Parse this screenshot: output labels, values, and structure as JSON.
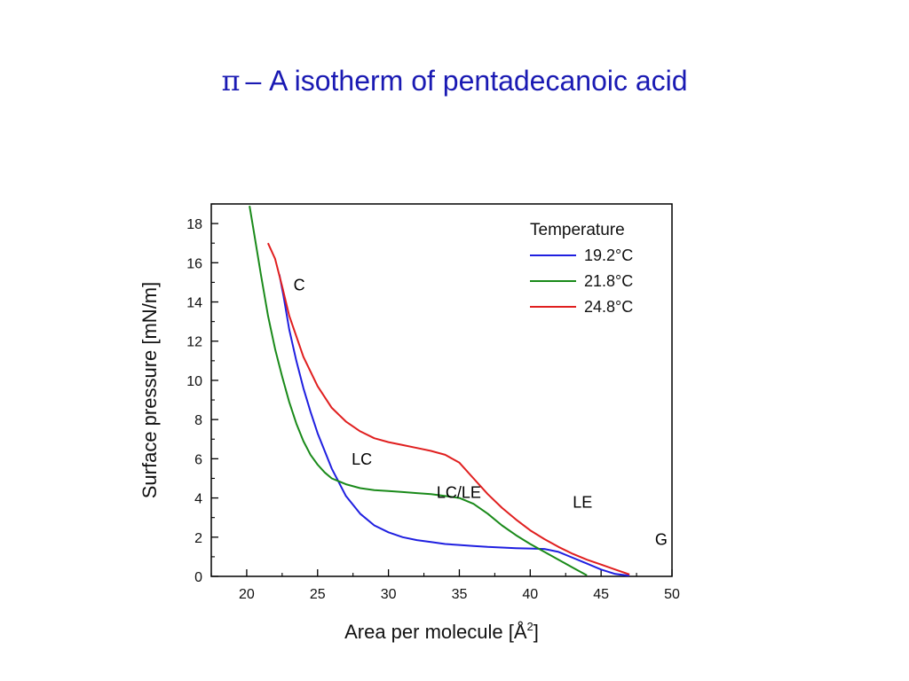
{
  "slide": {
    "title_symbol": "π",
    "title_text": "– A isotherm of pentadecanoic acid",
    "title_color": "#1a1ab3"
  },
  "chart_data": {
    "type": "line",
    "title": "",
    "xlabel": "Area per molecule [Å",
    "xlabel_superscript": "2",
    "xlabel_suffix": "]",
    "ylabel": "Surface pressure [mN/m]",
    "xlim": [
      17.5,
      50
    ],
    "ylim": [
      0,
      19
    ],
    "x_ticks": [
      20,
      25,
      30,
      35,
      40,
      45,
      50
    ],
    "y_ticks": [
      0,
      2,
      4,
      6,
      8,
      10,
      12,
      14,
      16,
      18
    ],
    "grid": false,
    "legend": {
      "title": "Temperature",
      "position": "top-right"
    },
    "series": [
      {
        "name": "19.2°C",
        "color": "#1f1fe0",
        "points": [
          [
            22.3,
            15.4
          ],
          [
            22.6,
            14.3
          ],
          [
            23.0,
            12.6
          ],
          [
            23.5,
            11.0
          ],
          [
            24.0,
            9.6
          ],
          [
            24.5,
            8.4
          ],
          [
            25.0,
            7.3
          ],
          [
            26.0,
            5.5
          ],
          [
            27.0,
            4.1
          ],
          [
            28.0,
            3.2
          ],
          [
            29.0,
            2.6
          ],
          [
            30.0,
            2.25
          ],
          [
            31.0,
            2.0
          ],
          [
            32.0,
            1.85
          ],
          [
            33.0,
            1.75
          ],
          [
            34.0,
            1.65
          ],
          [
            35.0,
            1.6
          ],
          [
            36.0,
            1.55
          ],
          [
            37.0,
            1.5
          ],
          [
            38.0,
            1.47
          ],
          [
            39.0,
            1.44
          ],
          [
            40.0,
            1.42
          ],
          [
            41.0,
            1.4
          ],
          [
            42.0,
            1.25
          ],
          [
            43.0,
            0.95
          ],
          [
            44.0,
            0.65
          ],
          [
            45.0,
            0.35
          ],
          [
            46.0,
            0.12
          ],
          [
            47.0,
            0.03
          ]
        ]
      },
      {
        "name": "21.8°C",
        "color": "#1a8a1a",
        "points": [
          [
            20.2,
            18.9
          ],
          [
            20.5,
            17.6
          ],
          [
            21.0,
            15.4
          ],
          [
            21.5,
            13.3
          ],
          [
            22.0,
            11.6
          ],
          [
            22.5,
            10.2
          ],
          [
            23.0,
            8.9
          ],
          [
            23.5,
            7.8
          ],
          [
            24.0,
            6.9
          ],
          [
            24.5,
            6.2
          ],
          [
            25.0,
            5.7
          ],
          [
            25.5,
            5.3
          ],
          [
            26.0,
            5.0
          ],
          [
            27.0,
            4.7
          ],
          [
            28.0,
            4.5
          ],
          [
            29.0,
            4.4
          ],
          [
            30.0,
            4.35
          ],
          [
            31.0,
            4.3
          ],
          [
            32.0,
            4.25
          ],
          [
            33.0,
            4.2
          ],
          [
            34.0,
            4.1
          ],
          [
            35.0,
            4.0
          ],
          [
            36.0,
            3.7
          ],
          [
            37.0,
            3.2
          ],
          [
            38.0,
            2.6
          ],
          [
            39.0,
            2.1
          ],
          [
            40.0,
            1.65
          ],
          [
            41.0,
            1.25
          ],
          [
            42.0,
            0.85
          ],
          [
            43.0,
            0.45
          ],
          [
            44.0,
            0.05
          ]
        ]
      },
      {
        "name": "24.8°C",
        "color": "#e01f1f",
        "points": [
          [
            21.5,
            17.0
          ],
          [
            22.0,
            16.2
          ],
          [
            22.5,
            14.8
          ],
          [
            23.0,
            13.3
          ],
          [
            24.0,
            11.2
          ],
          [
            25.0,
            9.7
          ],
          [
            26.0,
            8.6
          ],
          [
            27.0,
            7.9
          ],
          [
            28.0,
            7.4
          ],
          [
            29.0,
            7.05
          ],
          [
            30.0,
            6.85
          ],
          [
            31.0,
            6.7
          ],
          [
            32.0,
            6.55
          ],
          [
            33.0,
            6.4
          ],
          [
            34.0,
            6.2
          ],
          [
            35.0,
            5.8
          ],
          [
            36.0,
            5.0
          ],
          [
            37.0,
            4.2
          ],
          [
            38.0,
            3.5
          ],
          [
            39.0,
            2.9
          ],
          [
            40.0,
            2.35
          ],
          [
            41.0,
            1.9
          ],
          [
            42.0,
            1.5
          ],
          [
            43.0,
            1.15
          ],
          [
            44.0,
            0.85
          ],
          [
            45.0,
            0.6
          ],
          [
            46.0,
            0.35
          ],
          [
            47.0,
            0.1
          ]
        ]
      }
    ],
    "annotations": [
      {
        "label": "C",
        "x": 23.3,
        "y": 14.6
      },
      {
        "label": "LC",
        "x": 27.4,
        "y": 5.7
      },
      {
        "label": "LC/LE",
        "x": 33.4,
        "y": 4.0
      },
      {
        "label": "LE",
        "x": 43.0,
        "y": 3.5
      },
      {
        "label": "G",
        "x": 48.8,
        "y": 1.6
      }
    ]
  }
}
